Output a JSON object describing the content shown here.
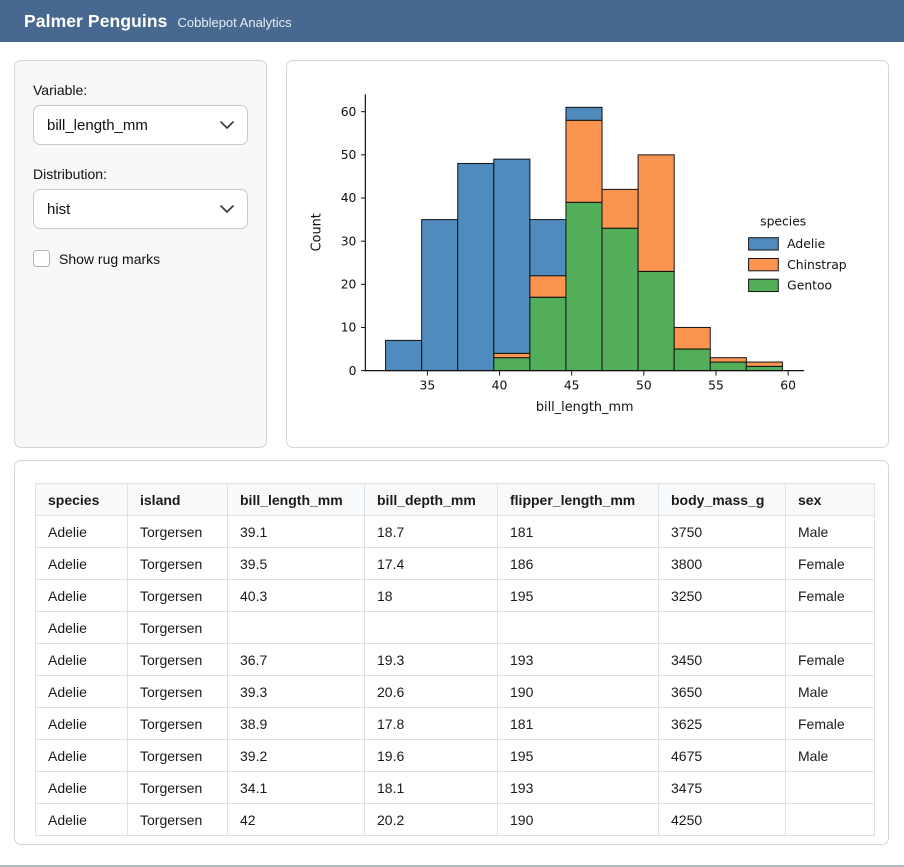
{
  "header": {
    "title": "Palmer Penguins",
    "subtitle": "Cobblepot Analytics"
  },
  "sidebar": {
    "variable": {
      "label": "Variable:",
      "value": "bill_length_mm"
    },
    "distribution": {
      "label": "Distribution:",
      "value": "hist"
    },
    "rug": {
      "label": "Show rug marks",
      "checked": false
    }
  },
  "chart_data": {
    "type": "bar",
    "subtype": "stacked-histogram",
    "xlabel": "bill_length_mm",
    "ylabel": "Count",
    "legend_title": "species",
    "legend_position": "right",
    "grid": false,
    "bar_edge_color": "#111111",
    "bin_edges": [
      32.1,
      34.6,
      37.1,
      39.6,
      42.1,
      44.6,
      47.1,
      49.6,
      52.1,
      54.6,
      57.1,
      59.6
    ],
    "series": [
      {
        "name": "Adelie",
        "color": "#4f8bbc",
        "values": [
          7,
          35,
          48,
          45,
          13,
          3,
          0,
          0,
          0,
          0,
          0
        ]
      },
      {
        "name": "Chinstrap",
        "color": "#fb944f",
        "values": [
          0,
          0,
          0,
          1,
          5,
          19,
          9,
          27,
          5,
          1,
          1
        ]
      },
      {
        "name": "Gentoo",
        "color": "#53ae5a",
        "values": [
          0,
          0,
          0,
          3,
          17,
          39,
          33,
          23,
          5,
          2,
          1
        ]
      }
    ],
    "stack_bottom_to_top": [
      "Gentoo",
      "Chinstrap",
      "Adelie"
    ],
    "x_ticks": [
      35,
      40,
      45,
      50,
      55,
      60
    ],
    "y_ticks": [
      0,
      10,
      20,
      30,
      40,
      50,
      60
    ],
    "xlim": [
      30.7,
      61.1
    ],
    "ylim": [
      0,
      64
    ]
  },
  "table": {
    "columns": [
      "species",
      "island",
      "bill_length_mm",
      "bill_depth_mm",
      "flipper_length_mm",
      "body_mass_g",
      "sex"
    ],
    "rows": [
      [
        "Adelie",
        "Torgersen",
        "39.1",
        "18.7",
        "181",
        "3750",
        "Male"
      ],
      [
        "Adelie",
        "Torgersen",
        "39.5",
        "17.4",
        "186",
        "3800",
        "Female"
      ],
      [
        "Adelie",
        "Torgersen",
        "40.3",
        "18",
        "195",
        "3250",
        "Female"
      ],
      [
        "Adelie",
        "Torgersen",
        "",
        "",
        "",
        "",
        ""
      ],
      [
        "Adelie",
        "Torgersen",
        "36.7",
        "19.3",
        "193",
        "3450",
        "Female"
      ],
      [
        "Adelie",
        "Torgersen",
        "39.3",
        "20.6",
        "190",
        "3650",
        "Male"
      ],
      [
        "Adelie",
        "Torgersen",
        "38.9",
        "17.8",
        "181",
        "3625",
        "Female"
      ],
      [
        "Adelie",
        "Torgersen",
        "39.2",
        "19.6",
        "195",
        "4675",
        "Male"
      ],
      [
        "Adelie",
        "Torgersen",
        "34.1",
        "18.1",
        "193",
        "3475",
        ""
      ],
      [
        "Adelie",
        "Torgersen",
        "42",
        "20.2",
        "190",
        "4250",
        ""
      ]
    ]
  },
  "colors": {
    "header_bg": "#48698f",
    "adelie_blue": "#4f8bbc",
    "chinstrap_orange": "#fb944f",
    "gentoo_green": "#53ae5a"
  }
}
